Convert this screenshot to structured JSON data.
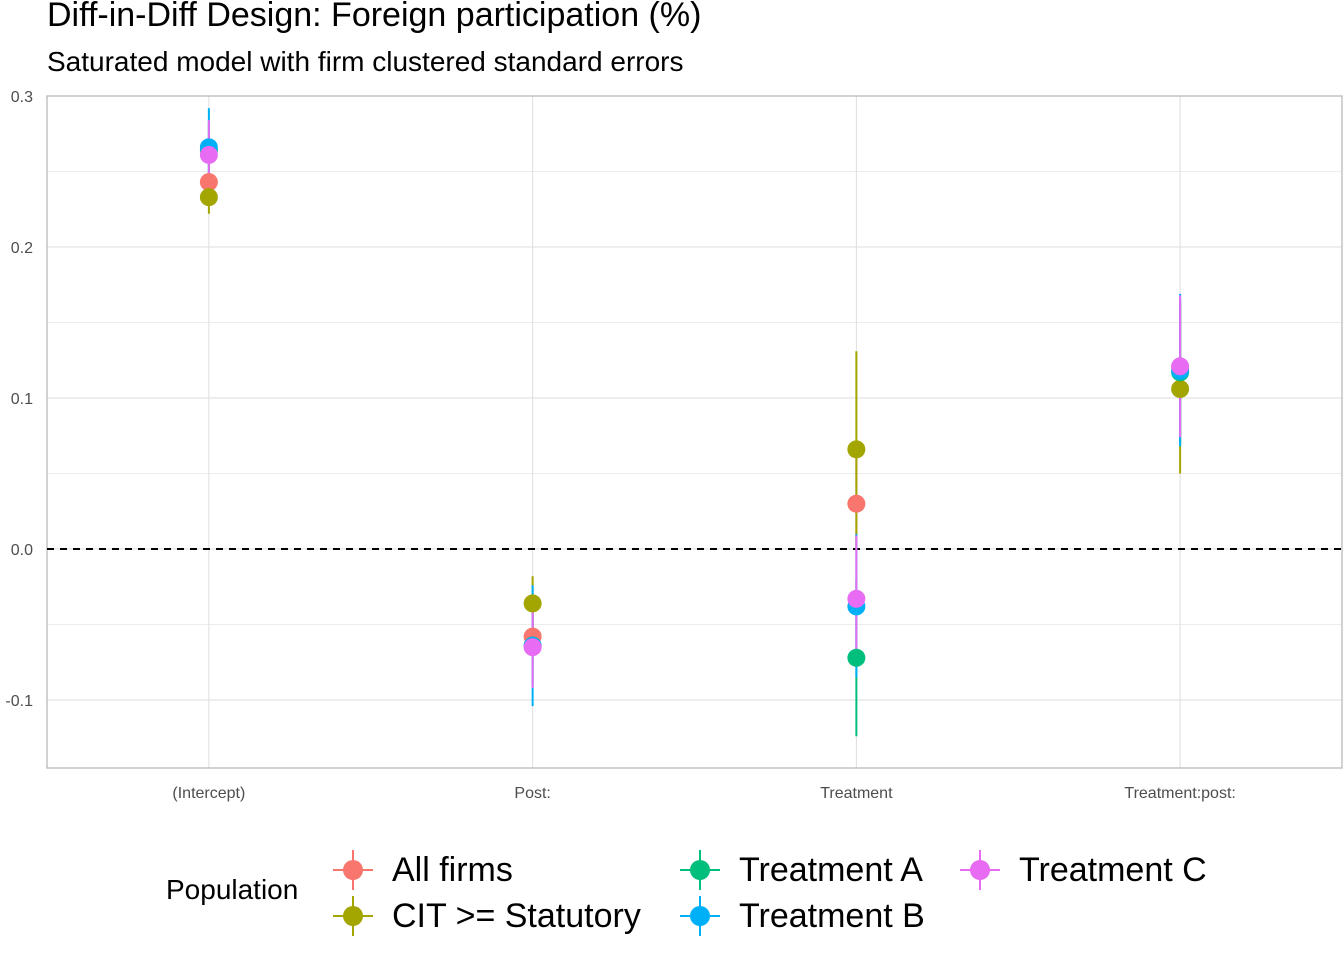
{
  "chart_data": {
    "type": "scatter",
    "title": "Diff-in-Diff Design: Foreign participation (%)",
    "subtitle": "Saturated model with firm clustered standard errors",
    "xlabel": "",
    "ylabel": "",
    "categories": [
      "(Intercept)",
      "Post:",
      "Treatment",
      "Treatment:post:"
    ],
    "ylim": [
      -0.145,
      0.3
    ],
    "yticks": [
      -0.1,
      0.0,
      0.1,
      0.2,
      0.3
    ],
    "ytick_labels": [
      "-0.1",
      "0.0",
      "0.1",
      "0.2",
      "0.3"
    ],
    "reference_line": {
      "y": 0,
      "style": "dashed"
    },
    "grid": true,
    "legend_title": "Population",
    "legend_position": "bottom",
    "series": [
      {
        "name": "All firms",
        "color": "#F8766D",
        "values": [
          0.243,
          -0.058,
          0.03,
          0.12
        ],
        "lower": [
          0.236,
          -0.072,
          0.0,
          0.075
        ],
        "upper": [
          0.25,
          -0.044,
          0.06,
          0.165
        ]
      },
      {
        "name": "CIT >= Statutory",
        "color": "#A3A500",
        "values": [
          0.233,
          -0.036,
          0.066,
          0.106
        ],
        "lower": [
          0.222,
          -0.053,
          0.0,
          0.05
        ],
        "upper": [
          0.244,
          -0.018,
          0.131,
          0.162
        ]
      },
      {
        "name": "Treatment A",
        "color": "#00BF7D",
        "values": [
          0.264,
          -0.064,
          -0.072,
          0.117
        ],
        "lower": [
          0.245,
          -0.09,
          -0.124,
          0.07
        ],
        "upper": [
          0.283,
          -0.038,
          -0.02,
          0.164
        ]
      },
      {
        "name": "Treatment B",
        "color": "#00B0F6",
        "values": [
          0.266,
          -0.064,
          -0.038,
          0.118
        ],
        "lower": [
          0.242,
          -0.104,
          -0.085,
          0.068
        ],
        "upper": [
          0.292,
          -0.024,
          0.01,
          0.169
        ]
      },
      {
        "name": "Treatment C",
        "color": "#E76BF3",
        "values": [
          0.261,
          -0.065,
          -0.033,
          0.121
        ],
        "lower": [
          0.238,
          -0.092,
          -0.075,
          0.074
        ],
        "upper": [
          0.284,
          -0.038,
          0.009,
          0.168
        ]
      }
    ]
  }
}
